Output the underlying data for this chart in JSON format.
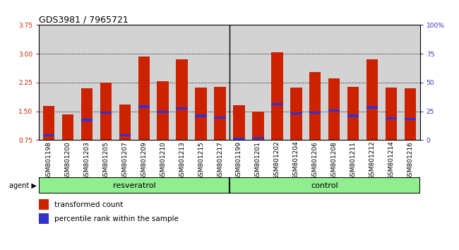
{
  "title": "GDS3981 / 7965721",
  "samples": [
    "GSM801198",
    "GSM801200",
    "GSM801203",
    "GSM801205",
    "GSM801207",
    "GSM801209",
    "GSM801210",
    "GSM801213",
    "GSM801215",
    "GSM801217",
    "GSM801199",
    "GSM801201",
    "GSM801202",
    "GSM801204",
    "GSM801206",
    "GSM801208",
    "GSM801211",
    "GSM801212",
    "GSM801214",
    "GSM801216"
  ],
  "transformed_counts": [
    1.63,
    1.42,
    2.1,
    2.25,
    1.68,
    2.92,
    2.28,
    2.85,
    2.12,
    2.13,
    1.65,
    1.5,
    3.04,
    2.12,
    2.52,
    2.35,
    2.13,
    2.85,
    2.12,
    2.1
  ],
  "percentile_ranks": [
    0.88,
    0.73,
    1.27,
    1.47,
    0.88,
    1.62,
    1.48,
    1.58,
    1.38,
    1.33,
    0.78,
    0.8,
    1.68,
    1.45,
    1.47,
    1.52,
    1.38,
    1.6,
    1.32,
    1.3
  ],
  "groups": [
    "resveratrol",
    "resveratrol",
    "resveratrol",
    "resveratrol",
    "resveratrol",
    "resveratrol",
    "resveratrol",
    "resveratrol",
    "resveratrol",
    "resveratrol",
    "control",
    "control",
    "control",
    "control",
    "control",
    "control",
    "control",
    "control",
    "control",
    "control"
  ],
  "bar_color": "#CC2200",
  "blue_marker_color": "#3333CC",
  "ylim_left": [
    0.75,
    3.75
  ],
  "ylim_right": [
    0,
    100
  ],
  "yticks_left": [
    0.75,
    1.5,
    2.25,
    3.0,
    3.75
  ],
  "yticks_right": [
    0,
    25,
    50,
    75,
    100
  ],
  "ytick_labels_right": [
    "0",
    "25",
    "50",
    "75",
    "100%"
  ],
  "grid_lines": [
    1.5,
    2.25,
    3.0
  ],
  "background_color": "#D3D3D3",
  "group_green": "#90EE90",
  "resv_label": "resveratrol",
  "ctrl_label": "control",
  "agent_label": "agent",
  "legend_red_label": "transformed count",
  "legend_blue_label": "percentile rank within the sample",
  "title_fontsize": 9,
  "tick_fontsize": 6.5,
  "group_fontsize": 8,
  "legend_fontsize": 7.5
}
